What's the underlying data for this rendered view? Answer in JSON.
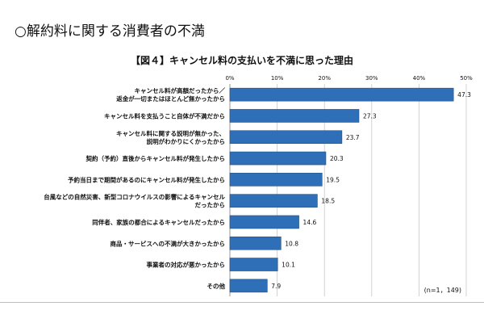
{
  "page_title": "○解約料に関する消費者の不満",
  "note": "(n=1，149)",
  "colors": {
    "bar": "#2e6fb8",
    "bar_edge": "#1f4f86",
    "grid": "#c8c8c8"
  },
  "chart_data": {
    "type": "bar",
    "orientation": "horizontal",
    "title": "【図４】キャンセル料の支払いを不満に思った理由",
    "categories": [
      [
        "キャンセル料が高額だったから／",
        "返金が一切またはほとんど無かったから"
      ],
      [
        "キャンセル料を支払うこと自体が不満だから"
      ],
      [
        "キャンセル料に関する説明が無かった、",
        "説明がわかりにくかったから"
      ],
      [
        "契約（予約）直後からキャンセル料が発生したから"
      ],
      [
        "予約当日まで期間があるのにキャンセル料が発生したから"
      ],
      [
        "台風などの自然災害、新型コロナウイルスの影響によるキャンセル",
        "だったから"
      ],
      [
        "同伴者、家族の都合によるキャンセルだったから"
      ],
      [
        "商品・サービスへの不満が大きかったから"
      ],
      [
        "事業者の対応が悪かったから"
      ],
      [
        "その他"
      ]
    ],
    "values": [
      47.3,
      27.3,
      23.7,
      20.3,
      19.5,
      18.5,
      14.6,
      10.8,
      10.1,
      7.9
    ],
    "value_labels": [
      "47.3",
      "27.3",
      "23.7",
      "20.3",
      "19.5",
      "18.5",
      "14.6",
      "10.8",
      "10.1",
      "7.9"
    ],
    "xlim": [
      0,
      50
    ],
    "xticks": [
      0,
      10,
      20,
      30,
      40,
      50
    ],
    "xtick_labels": [
      "0%",
      "10%",
      "20%",
      "30%",
      "40%",
      "50%"
    ],
    "axis_position": "top",
    "grid": true
  }
}
